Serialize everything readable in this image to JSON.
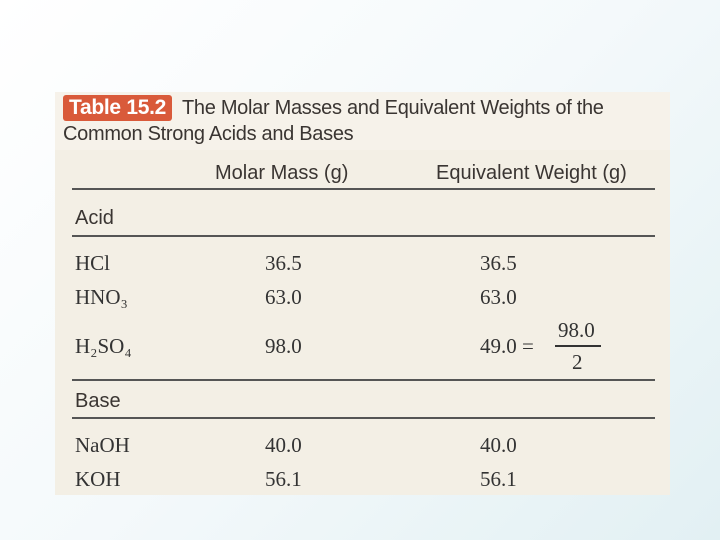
{
  "header": {
    "label": "Table 15.2",
    "title": "The Molar Masses and Equivalent Weights of the Common Strong Acids and Bases"
  },
  "table": {
    "columns": [
      "Molar Mass (g)",
      "Equivalent Weight (g)"
    ],
    "sections": [
      {
        "name": "Acid",
        "rows": [
          [
            "HCl",
            "36.5",
            "36.5"
          ],
          [
            "HNO₃",
            "63.0",
            "63.0"
          ],
          [
            "H₂SO₄",
            "98.0",
            {
              "text": "49.0 =",
              "numerator": "98.0",
              "denominator": "2"
            }
          ]
        ]
      },
      {
        "name": "Base",
        "rows": [
          [
            "NaOH",
            "40.0",
            "40.0"
          ],
          [
            "KOH",
            "56.1",
            "56.1"
          ]
        ]
      }
    ]
  }
}
